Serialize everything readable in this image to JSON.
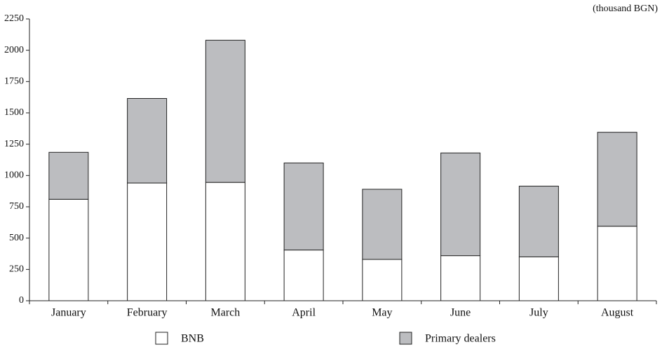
{
  "chart_data": {
    "type": "stacked_bar",
    "unit_label": "(thousand BGN)",
    "categories": [
      "January",
      "February",
      "March",
      "April",
      "May",
      "June",
      "July",
      "August"
    ],
    "series": [
      {
        "name": "BNB",
        "color": "#ffffff",
        "values": [
          810,
          940,
          945,
          405,
          330,
          360,
          350,
          595
        ]
      },
      {
        "name": "Primary dealers",
        "color": "#bcbdc0",
        "values": [
          375,
          675,
          1135,
          695,
          560,
          820,
          565,
          750
        ]
      }
    ],
    "ylim": [
      0,
      2250
    ],
    "yticks": [
      0,
      250,
      500,
      750,
      1000,
      1250,
      1500,
      1750,
      2000,
      2250
    ],
    "grid": false
  }
}
